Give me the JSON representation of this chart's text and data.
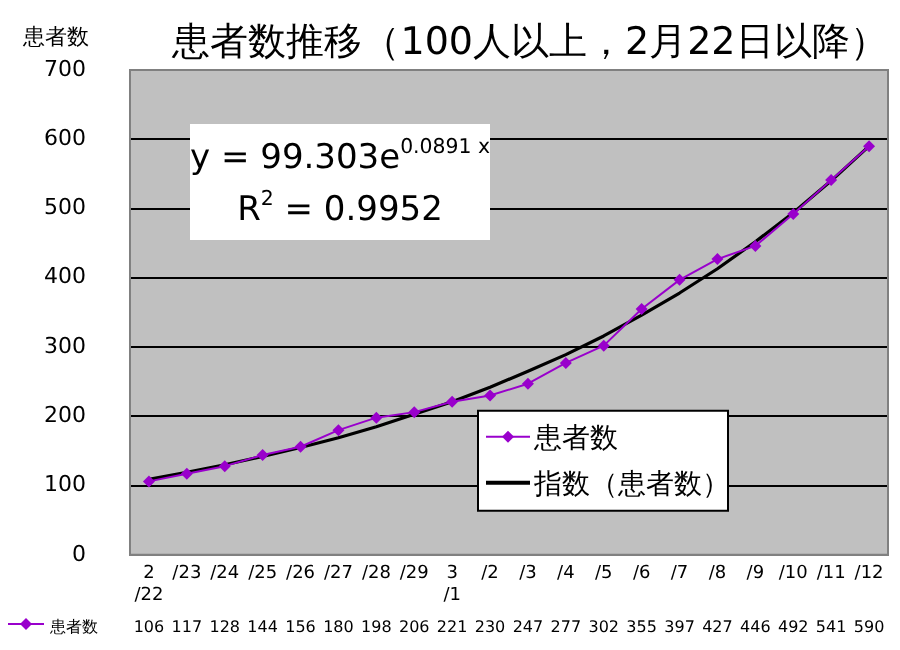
{
  "chart_data": {
    "type": "line",
    "title": "患者数推移（100人以上，2月22日以降）",
    "ylabel": "患者数",
    "categories": [
      "2/22",
      "/23",
      "/24",
      "/25",
      "/26",
      "/27",
      "/28",
      "/29",
      "3/1",
      "/2",
      "/3",
      "/4",
      "/5",
      "/6",
      "/7",
      "/8",
      "/9",
      "/10",
      "/11",
      "/12"
    ],
    "series": [
      {
        "name": "患者数",
        "color": "#9900cc",
        "marker": "diamond",
        "values": [
          106,
          117,
          128,
          144,
          156,
          180,
          198,
          206,
          221,
          230,
          247,
          277,
          302,
          355,
          397,
          427,
          446,
          492,
          541,
          590
        ],
        "value_labels": [
          "106",
          "117",
          "128",
          "144",
          "156",
          "180",
          "198",
          "206",
          "221",
          "230",
          "247",
          "277",
          "302",
          "355",
          "397",
          "427",
          "446",
          "492",
          "541",
          "590"
        ]
      },
      {
        "name": "指数（患者数）",
        "color": "#000000",
        "marker": "none",
        "values": [
          109,
          119,
          130,
          142,
          155,
          169,
          185,
          203,
          221,
          242,
          265,
          289,
          316,
          346,
          378,
          413,
          452,
          494,
          540,
          590
        ]
      }
    ],
    "ylim": [
      0,
      700
    ],
    "yticks": [
      0,
      100,
      200,
      300,
      400,
      500,
      600,
      700
    ],
    "grid": "y",
    "legend": "bottom right",
    "annotations": [
      "y = 99.303e$^{0.0891 x}$",
      "R$^{2}$ = 0.9952"
    ]
  }
}
